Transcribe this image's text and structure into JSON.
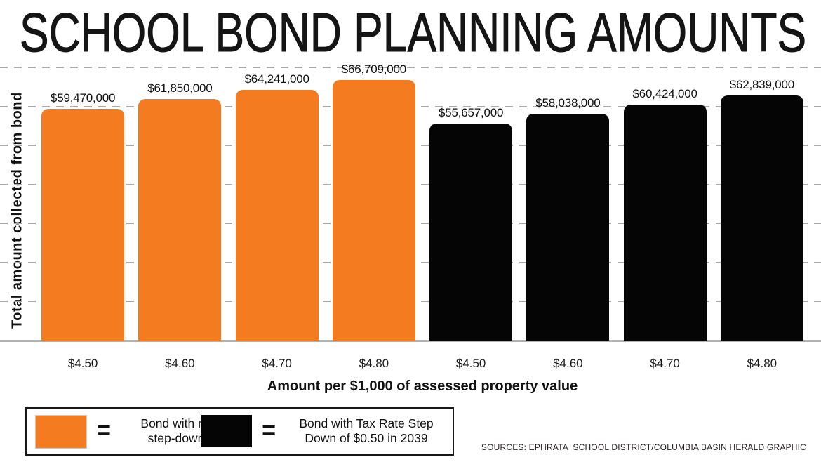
{
  "title": "SCHOOL BOND PLANNING AMOUNTS",
  "chart_data": {
    "type": "bar",
    "title": "SCHOOL BOND PLANNING AMOUNTS",
    "categories": [
      "$4.50",
      "$4.60",
      "$4.70",
      "$4.80",
      "$4.50",
      "$4.60",
      "$4.70",
      "$4.80"
    ],
    "series": [
      {
        "name": "Bond with no step-down",
        "color": "#F47B20",
        "values": [
          59470000,
          61850000,
          64241000,
          66709000
        ],
        "value_labels": [
          "$59,470,000",
          "$61,850,000",
          "$64,241,000",
          "$66,709,000"
        ]
      },
      {
        "name": "Bond with Tax Rate Step Down of $0.50 in 2039",
        "color": "#050505",
        "values": [
          55657000,
          58038000,
          60424000,
          62839000
        ],
        "value_labels": [
          "$55,657,000",
          "$58,038,000",
          "$60,424,000",
          "$62,839,000"
        ]
      }
    ],
    "xlabel": "Amount per $1,000 of assessed property value",
    "ylabel": "Total amount collected from bond",
    "ylim": [
      0,
      70000000
    ],
    "gridline_interval": 10000000,
    "grid": "horizontal-dashed",
    "legend_position": "bottom-left"
  },
  "legend": {
    "items": [
      {
        "swatch_color": "#F47B20",
        "equals": "=",
        "label_lines": [
          "Bond with no",
          "step-down"
        ]
      },
      {
        "swatch_color": "#050505",
        "equals": "=",
        "label_lines": [
          "Bond with Tax Rate Step",
          "Down of $0.50 in 2039"
        ]
      }
    ]
  },
  "sources": "SOURCES: EPHRATA  SCHOOL DISTRICT/COLUMBIA BASIN HERALD GRAPHIC"
}
